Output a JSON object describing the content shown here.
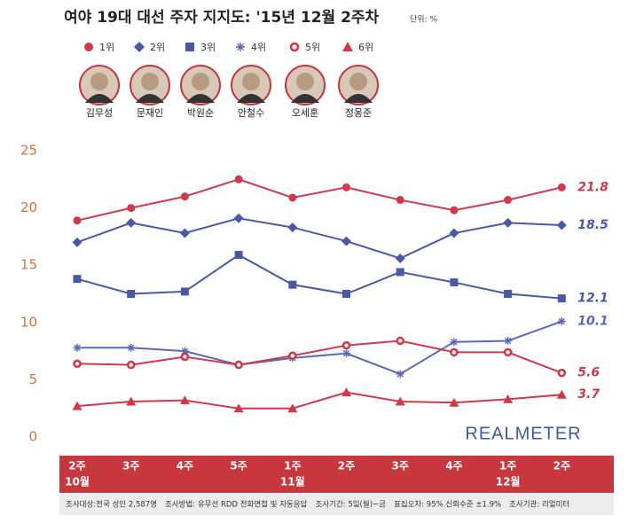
{
  "chart_data": {
    "type": "line",
    "title": "여야 19대 대선 주자 지지도: '15년 12월 2주차",
    "unit_note": "단위: %",
    "candidates": [
      "김무성",
      "문재인",
      "박원순",
      "안철수",
      "오세훈",
      "정몽준"
    ],
    "categories": [
      "2주",
      "3주",
      "4주",
      "5주",
      "1주",
      "2주",
      "3주",
      "4주",
      "1주",
      "2주"
    ],
    "month_labels": [
      "10월",
      null,
      null,
      null,
      "11월",
      null,
      null,
      null,
      "12월",
      null
    ],
    "ylim": [
      0,
      25
    ],
    "yticks": [
      0,
      5,
      10,
      15,
      20,
      25
    ],
    "series": [
      {
        "name": "1위",
        "color": "#d0394a",
        "marker": "circle",
        "values": [
          18.9,
          20.0,
          21.0,
          22.5,
          20.9,
          21.8,
          20.7,
          19.8,
          20.7,
          21.8
        ]
      },
      {
        "name": "2위",
        "color": "#4a58a6",
        "marker": "diamond",
        "values": [
          17.0,
          18.7,
          17.8,
          19.1,
          18.3,
          17.1,
          15.6,
          17.8,
          18.7,
          18.5
        ]
      },
      {
        "name": "3위",
        "color": "#4a58a6",
        "marker": "square",
        "values": [
          13.8,
          12.5,
          12.7,
          15.9,
          13.3,
          12.5,
          14.4,
          13.5,
          12.5,
          12.1
        ]
      },
      {
        "name": "4위",
        "color": "#5a68b8",
        "marker": "asterisk",
        "values": [
          7.8,
          7.8,
          7.5,
          6.3,
          6.9,
          7.3,
          5.5,
          8.3,
          8.4,
          10.1
        ]
      },
      {
        "name": "5위",
        "color": "#d0394a",
        "marker": "hollow",
        "values": [
          6.4,
          6.3,
          7.0,
          6.3,
          7.1,
          8.0,
          8.4,
          7.4,
          7.4,
          5.6
        ]
      },
      {
        "name": "6위",
        "color": "#d0394a",
        "marker": "triangle",
        "values": [
          2.7,
          3.1,
          3.2,
          2.5,
          2.5,
          3.9,
          3.1,
          3.0,
          3.3,
          3.7
        ]
      }
    ],
    "watermark": "REALMETER",
    "footer": [
      "조사대상:전국 성인 2,587명",
      "조사방법: 유무선 RDD 전화면접 및 자동응답",
      "조사기간: 5일(월)~금",
      "표집오차: 95% 신뢰수준 ±1.9%",
      "조사기관: 리얼미터"
    ]
  }
}
